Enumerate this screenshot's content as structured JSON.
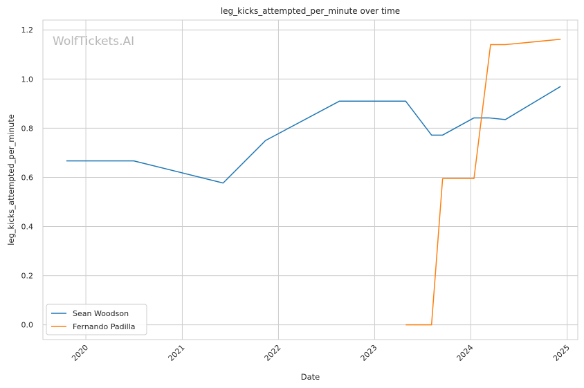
{
  "chart_data": {
    "type": "line",
    "title": "leg_kicks_attempted_per_minute over time",
    "xlabel": "Date",
    "ylabel": "leg_kicks_attempted_per_minute",
    "watermark": "WolfTickets.AI",
    "xlim": [
      "2019-07-22",
      "2025-02-10"
    ],
    "ylim": [
      -0.06,
      1.24
    ],
    "x_ticks": [
      {
        "date": "2020-01-01",
        "label": "2020"
      },
      {
        "date": "2021-01-01",
        "label": "2021"
      },
      {
        "date": "2022-01-01",
        "label": "2022"
      },
      {
        "date": "2023-01-01",
        "label": "2023"
      },
      {
        "date": "2024-01-01",
        "label": "2024"
      },
      {
        "date": "2025-01-01",
        "label": "2025"
      }
    ],
    "y_ticks": [
      {
        "value": 0.0,
        "label": "0.0"
      },
      {
        "value": 0.2,
        "label": "0.2"
      },
      {
        "value": 0.4,
        "label": "0.4"
      },
      {
        "value": 0.6,
        "label": "0.6"
      },
      {
        "value": 0.8,
        "label": "0.8"
      },
      {
        "value": 1.0,
        "label": "1.0"
      },
      {
        "value": 1.2,
        "label": "1.2"
      }
    ],
    "grid": true,
    "legend_position": "lower-left",
    "series": [
      {
        "name": "Sean Woodson",
        "color": "#1f77b4",
        "points": [
          {
            "x": "2019-10-19",
            "y": 0.667
          },
          {
            "x": "2020-07-01",
            "y": 0.667
          },
          {
            "x": "2021-06-05",
            "y": 0.577
          },
          {
            "x": "2021-11-13",
            "y": 0.75
          },
          {
            "x": "2022-08-20",
            "y": 0.91
          },
          {
            "x": "2023-04-29",
            "y": 0.91
          },
          {
            "x": "2023-08-05",
            "y": 0.772
          },
          {
            "x": "2023-09-16",
            "y": 0.772
          },
          {
            "x": "2024-01-13",
            "y": 0.842
          },
          {
            "x": "2024-03-09",
            "y": 0.842
          },
          {
            "x": "2024-05-11",
            "y": 0.835
          },
          {
            "x": "2024-12-07",
            "y": 0.97
          }
        ]
      },
      {
        "name": "Fernando Padilla",
        "color": "#ff7f0e",
        "points": [
          {
            "x": "2023-04-29",
            "y": 0.0
          },
          {
            "x": "2023-08-05",
            "y": 0.0
          },
          {
            "x": "2023-09-16",
            "y": 0.595
          },
          {
            "x": "2024-01-13",
            "y": 0.595
          },
          {
            "x": "2024-03-16",
            "y": 1.14
          },
          {
            "x": "2024-05-11",
            "y": 1.14
          },
          {
            "x": "2024-12-07",
            "y": 1.162
          }
        ]
      }
    ]
  }
}
